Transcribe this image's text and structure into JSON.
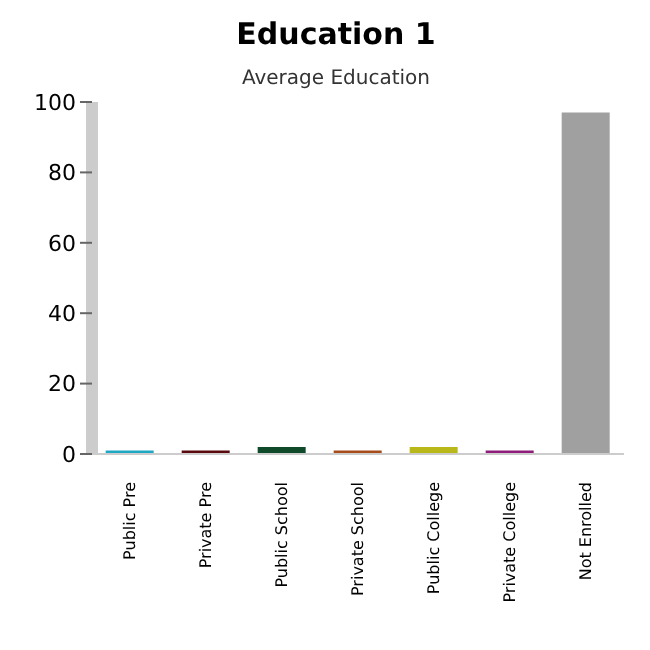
{
  "chart_data": {
    "type": "bar",
    "title": "Education 1",
    "subtitle": "Average Education",
    "categories": [
      "Public Pre",
      "Private Pre",
      "Public School",
      "Private School",
      "Public College",
      "Private College",
      "Not Enrolled"
    ],
    "values": [
      1,
      1,
      2,
      1,
      2,
      1,
      97
    ],
    "colors": [
      "#1fa8c4",
      "#5a0a0e",
      "#0f4a2a",
      "#a64c1a",
      "#b8b81a",
      "#8e1c7a",
      "#a0a0a0"
    ],
    "ylim": [
      0,
      100
    ],
    "yticks": [
      0,
      20,
      40,
      60,
      80,
      100
    ],
    "grid": false,
    "legend": false
  }
}
